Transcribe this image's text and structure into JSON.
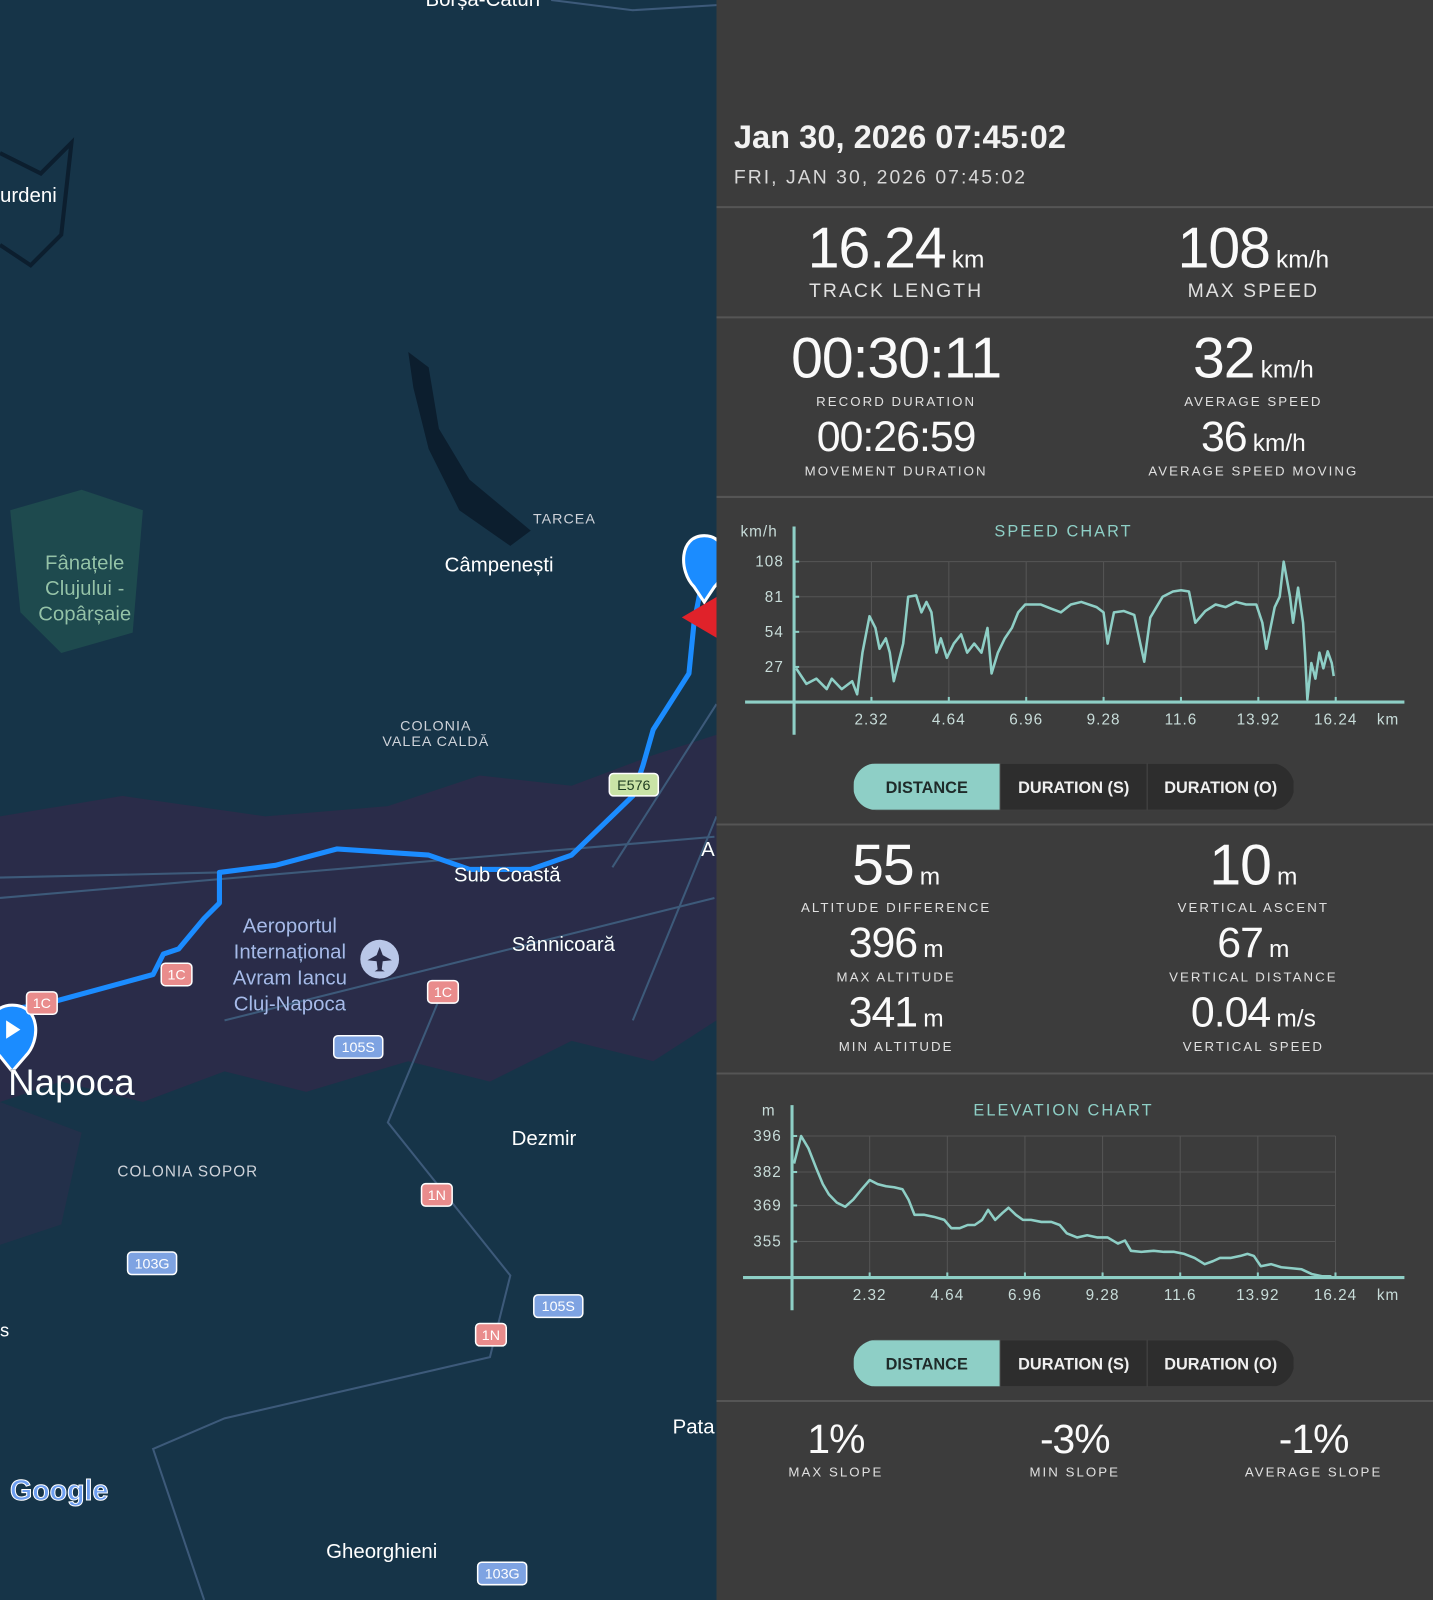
{
  "map": {
    "place_labels": [
      {
        "lines": [
          "Borșa-Cătun"
        ]
      },
      {
        "lines": [
          "urdeni"
        ]
      },
      {
        "lines": [
          "Fânațele",
          "Clujului -",
          "Copârșaie"
        ]
      },
      {
        "lines": [
          "TARCEA"
        ]
      },
      {
        "lines": [
          "Câmpenești"
        ]
      },
      {
        "lines": [
          "COLONIA",
          "VALEA CALDĂ"
        ]
      },
      {
        "lines": [
          "Sub Coastă"
        ]
      },
      {
        "lines": [
          "Aeroportul",
          "Internațional",
          "Avram Iancu",
          "Cluj-Napoca"
        ]
      },
      {
        "lines": [
          "Sânnicoară"
        ]
      },
      {
        "lines": [
          "A"
        ]
      },
      {
        "lines": [
          "Napoca"
        ]
      },
      {
        "lines": [
          "Dezmir"
        ]
      },
      {
        "lines": [
          "COLONIA SOPOR"
        ]
      },
      {
        "lines": [
          "s"
        ]
      },
      {
        "lines": [
          "Pata"
        ]
      },
      {
        "lines": [
          "Gheorghieni"
        ]
      }
    ],
    "road_shields": [
      "E576",
      "1C",
      "1C",
      "1C",
      "105S",
      "105S",
      "1N",
      "1N",
      "103G",
      "103G"
    ],
    "logo": "Google"
  },
  "header": {
    "title": "Jan 30, 2026 07:45:02",
    "subtitle": "FRI, JAN 30, 2026 07:45:02"
  },
  "track": [
    {
      "value": "16.24",
      "unit": "km",
      "label": "TRACK LENGTH"
    },
    {
      "value": "108",
      "unit": "km/h",
      "label": "MAX SPEED"
    }
  ],
  "timing": [
    {
      "value": "00:30:11",
      "label": "RECORD DURATION"
    },
    {
      "value": "32",
      "unit": "km/h",
      "label": "AVERAGE SPEED"
    },
    {
      "value": "00:26:59",
      "label": "MOVEMENT DURATION"
    },
    {
      "value": "36",
      "unit": "km/h",
      "label": "AVERAGE SPEED MOVING"
    }
  ],
  "speed_chart": {
    "type": "line",
    "title": "SPEED CHART",
    "y_unit": "km/h",
    "x_unit": "km",
    "color": "#8ecfc6",
    "grid": true,
    "xlim": [
      0,
      18.3
    ],
    "ylim": [
      0,
      135
    ],
    "xticks": [
      2.32,
      4.64,
      6.96,
      9.28,
      11.6,
      13.92,
      16.24
    ],
    "yticks": [
      27,
      54,
      81,
      108
    ],
    "x": [
      0.06,
      0.37,
      0.67,
      0.98,
      1.13,
      1.43,
      1.74,
      1.89,
      2.05,
      2.26,
      2.44,
      2.56,
      2.75,
      2.87,
      2.99,
      3.27,
      3.42,
      3.66,
      3.82,
      3.97,
      4.12,
      4.27,
      4.4,
      4.58,
      4.79,
      5.01,
      5.19,
      5.4,
      5.62,
      5.8,
      5.92,
      6.11,
      6.32,
      6.53,
      6.72,
      6.93,
      7.39,
      7.69,
      8.0,
      8.3,
      8.61,
      9.07,
      9.28,
      9.4,
      9.59,
      9.89,
      10.2,
      10.38,
      10.5,
      10.68,
      11.05,
      11.36,
      11.6,
      11.84,
      12.03,
      12.33,
      12.64,
      12.94,
      13.25,
      13.55,
      13.86,
      14.04,
      14.16,
      14.41,
      14.56,
      14.68,
      14.87,
      14.96,
      15.11,
      15.26,
      15.32,
      15.39,
      15.51,
      15.63,
      15.75,
      15.87,
      16.0,
      16.12,
      16.18
    ],
    "values": [
      26,
      14,
      18,
      10,
      18,
      10,
      16,
      6,
      38,
      66,
      57,
      41,
      49,
      38,
      16,
      45,
      81,
      82,
      69,
      77,
      69,
      38,
      49,
      34,
      45,
      52,
      38,
      45,
      38,
      57,
      22,
      38,
      49,
      57,
      69,
      75,
      75,
      72,
      69,
      75,
      77,
      73,
      69,
      45,
      69,
      70,
      67,
      45,
      31,
      65,
      81,
      85,
      86,
      85,
      61,
      70,
      75,
      73,
      77,
      75,
      75,
      61,
      41,
      73,
      81,
      108,
      81,
      61,
      88,
      61,
      38,
      2,
      30,
      18,
      38,
      26,
      39,
      30,
      20
    ],
    "tabs": [
      "DISTANCE",
      "DURATION (S)",
      "DURATION (O)"
    ]
  },
  "altitude": [
    {
      "value": "55",
      "unit": "m",
      "label": "ALTITUDE DIFFERENCE"
    },
    {
      "value": "10",
      "unit": "m",
      "label": "VERTICAL ASCENT"
    },
    {
      "value": "396",
      "unit": "m",
      "label": "MAX ALTITUDE"
    },
    {
      "value": "67",
      "unit": "m",
      "label": "VERTICAL DISTANCE"
    },
    {
      "value": "341",
      "unit": "m",
      "label": "MIN ALTITUDE"
    },
    {
      "value": "0.04",
      "unit": "m/s",
      "label": "VERTICAL SPEED"
    }
  ],
  "elevation_chart": {
    "type": "line",
    "title": "ELEVATION CHART",
    "y_unit": "m",
    "x_unit": "km",
    "color": "#8ecfc6",
    "grid": true,
    "xlim": [
      0,
      18.3
    ],
    "ylim": [
      341,
      408
    ],
    "xticks": [
      2.32,
      4.64,
      6.96,
      9.28,
      11.6,
      13.92,
      16.24
    ],
    "yticks": [
      355,
      369,
      382,
      396
    ],
    "x": [
      0.06,
      0.27,
      0.49,
      0.73,
      0.92,
      1.1,
      1.34,
      1.59,
      1.83,
      2.08,
      2.32,
      2.56,
      2.81,
      3.05,
      3.3,
      3.48,
      3.66,
      3.94,
      4.24,
      4.55,
      4.76,
      5.01,
      5.25,
      5.46,
      5.68,
      5.86,
      6.07,
      6.29,
      6.47,
      6.69,
      6.9,
      7.14,
      7.45,
      7.75,
      8.0,
      8.21,
      8.52,
      8.82,
      9.13,
      9.43,
      9.74,
      9.95,
      10.13,
      10.44,
      10.81,
      11.11,
      11.42,
      11.72,
      12.03,
      12.33,
      12.58,
      12.79,
      13.1,
      13.4,
      13.61,
      13.8,
      14.01,
      14.32,
      14.62,
      14.93,
      15.23,
      15.54,
      15.84,
      16.12
    ],
    "values": [
      385.3,
      396.0,
      391.2,
      383.3,
      377.3,
      373.3,
      370.1,
      368.5,
      371.3,
      375.3,
      378.9,
      377.3,
      376.5,
      376.1,
      375.3,
      371.3,
      365.4,
      365.4,
      364.6,
      363.4,
      360.2,
      360.2,
      361.4,
      361.4,
      363.4,
      367.3,
      363.4,
      366.1,
      368.1,
      365.4,
      363.4,
      363.4,
      362.6,
      362.6,
      361.4,
      358.2,
      356.6,
      357.4,
      356.6,
      356.6,
      354.2,
      355.4,
      351.4,
      351.0,
      351.4,
      351.0,
      351.0,
      350.2,
      348.6,
      346.2,
      347.4,
      348.6,
      348.6,
      349.4,
      350.2,
      349.4,
      345.4,
      346.2,
      345.0,
      344.6,
      344.2,
      342.3,
      341.5,
      341.5
    ],
    "tabs": [
      "DISTANCE",
      "DURATION (S)",
      "DURATION (O)"
    ]
  },
  "slope": [
    {
      "value": "1%",
      "label": "MAX SLOPE"
    },
    {
      "value": "-3%",
      "label": "MIN SLOPE"
    },
    {
      "value": "-1%",
      "label": "AVERAGE SLOPE"
    }
  ]
}
